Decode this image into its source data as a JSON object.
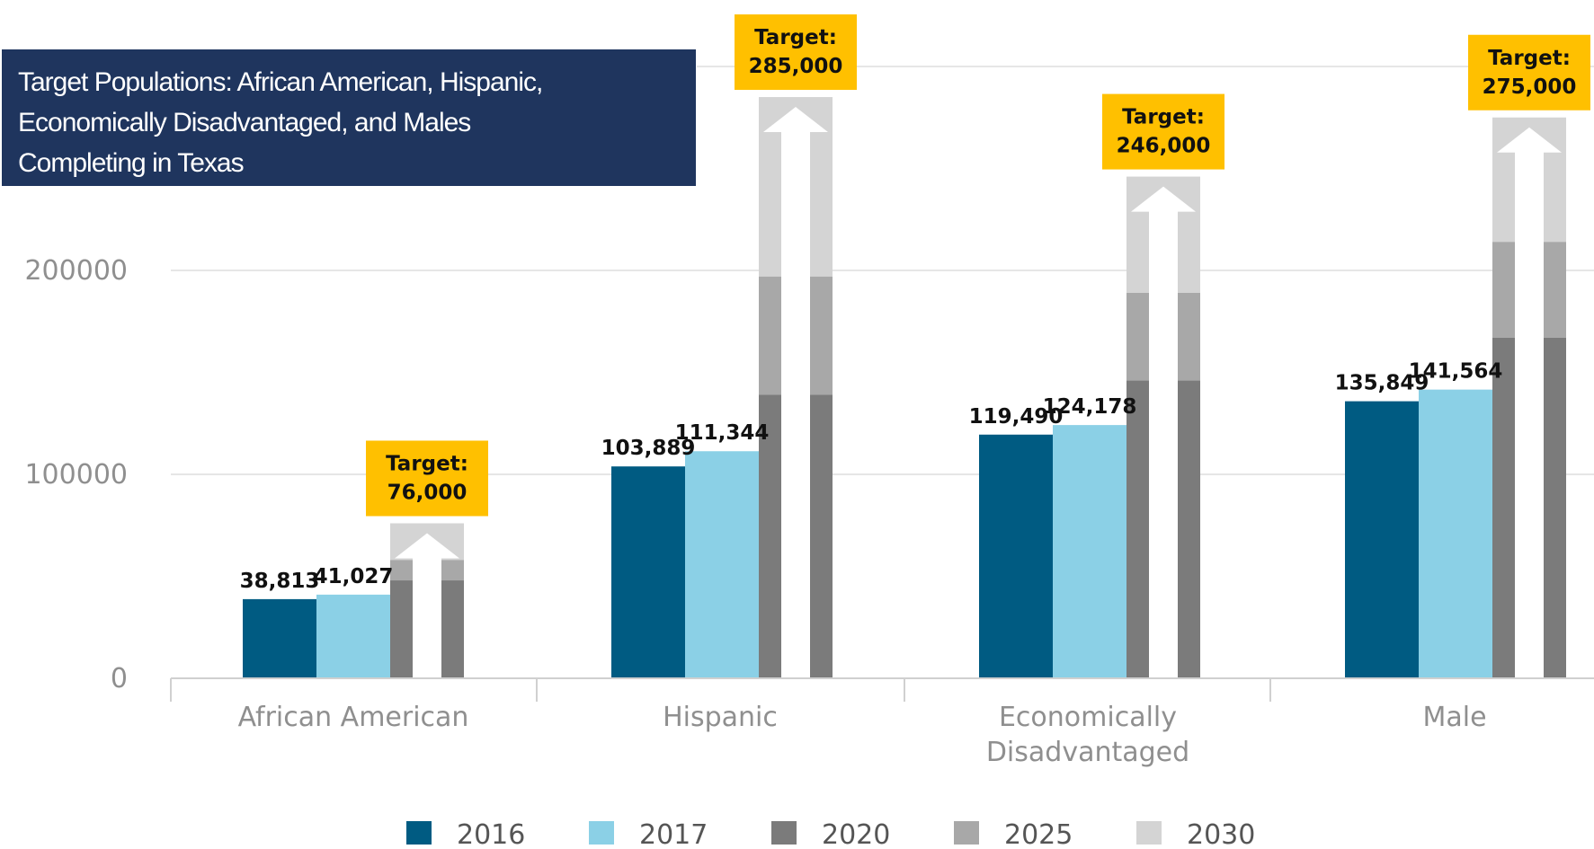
{
  "chart_data": {
    "type": "bar",
    "title": "Target Populations: African American, Hispanic,\nEconomically Disadvantaged, and Males\nCompleting in Texas",
    "categories": [
      "African American",
      "Hispanic",
      "Economically\nDisadvantaged",
      "Male"
    ],
    "series": [
      {
        "name": "2016",
        "color": "#005b82",
        "values": [
          38813,
          103889,
          119490,
          135849
        ]
      },
      {
        "name": "2017",
        "color": "#8bd0e6",
        "values": [
          41027,
          111344,
          124178,
          141564
        ]
      },
      {
        "name": "2020",
        "color": "#7b7b7b",
        "values": [
          48000,
          139000,
          146000,
          167000
        ]
      },
      {
        "name": "2025",
        "color": "#a8a8a8",
        "values": [
          58000,
          197000,
          189000,
          214000
        ]
      },
      {
        "name": "2030",
        "color": "#d4d4d4",
        "values": [
          76000,
          285000,
          246000,
          275000
        ]
      }
    ],
    "data_labels": [
      {
        "category": 0,
        "series": 0,
        "text": "38,813"
      },
      {
        "category": 0,
        "series": 1,
        "text": "41,027"
      },
      {
        "category": 1,
        "series": 0,
        "text": "103,889"
      },
      {
        "category": 1,
        "series": 1,
        "text": "111,344"
      },
      {
        "category": 2,
        "series": 0,
        "text": "119,490"
      },
      {
        "category": 2,
        "series": 1,
        "text": "124,178"
      },
      {
        "category": 3,
        "series": 0,
        "text": "135,849"
      },
      {
        "category": 3,
        "series": 1,
        "text": "141,564"
      }
    ],
    "targets": [
      {
        "category": 0,
        "line1": "Target:",
        "line2": "76,000"
      },
      {
        "category": 1,
        "line1": "Target:",
        "line2": "285,000"
      },
      {
        "category": 2,
        "line1": "Target:",
        "line2": "246,000"
      },
      {
        "category": 3,
        "line1": "Target:",
        "line2": "275,000"
      }
    ],
    "target_color": "#ffc000",
    "y_ticks": [
      0,
      100000,
      200000
    ],
    "y_tick_labels": [
      "0",
      "100000",
      "200000"
    ],
    "ylim": [
      0,
      300000
    ],
    "xlabel": "",
    "ylabel": "",
    "grid": true,
    "legend_position": "bottom",
    "title_box_color": "#1f355e"
  }
}
